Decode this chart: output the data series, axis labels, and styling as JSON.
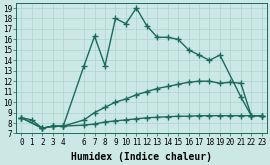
{
  "xlabel": "Humidex (Indice chaleur)",
  "background_color": "#cce8e4",
  "line_color": "#1a6b5a",
  "grid_color": "#aad4cc",
  "xlim": [
    -0.5,
    23.5
  ],
  "ylim": [
    7,
    19.5
  ],
  "xticks": [
    0,
    1,
    2,
    3,
    4,
    6,
    7,
    8,
    9,
    10,
    11,
    12,
    13,
    14,
    15,
    16,
    17,
    18,
    19,
    20,
    21,
    22,
    23
  ],
  "yticks": [
    7,
    8,
    9,
    10,
    11,
    12,
    13,
    14,
    15,
    16,
    17,
    18,
    19
  ],
  "curve1_x": [
    0,
    1,
    2,
    3,
    4,
    6,
    7,
    8,
    9,
    10,
    11,
    12,
    13,
    14,
    15,
    16,
    17,
    18,
    19,
    21,
    22,
    23
  ],
  "curve1_y": [
    8.5,
    8.3,
    7.5,
    7.7,
    7.7,
    13.5,
    16.3,
    13.5,
    18.0,
    17.5,
    19.0,
    17.3,
    16.2,
    16.2,
    16.0,
    15.0,
    14.5,
    14.0,
    14.5,
    10.5,
    8.7,
    8.7
  ],
  "curve2_x": [
    0,
    2,
    3,
    4,
    6,
    7,
    8,
    9,
    10,
    11,
    12,
    13,
    14,
    15,
    16,
    17,
    18,
    19,
    20,
    21,
    22,
    23
  ],
  "curve2_y": [
    8.5,
    7.5,
    7.7,
    7.7,
    8.3,
    9.0,
    9.5,
    10.0,
    10.3,
    10.7,
    11.0,
    11.3,
    11.5,
    11.7,
    11.9,
    12.0,
    12.0,
    11.8,
    11.9,
    11.8,
    8.7,
    8.7
  ],
  "curve3_x": [
    0,
    2,
    3,
    4,
    6,
    7,
    8,
    9,
    10,
    11,
    12,
    13,
    14,
    15,
    16,
    17,
    18,
    19,
    20,
    21,
    22,
    23
  ],
  "curve3_y": [
    8.5,
    7.5,
    7.7,
    7.7,
    7.8,
    7.9,
    8.1,
    8.2,
    8.3,
    8.4,
    8.5,
    8.55,
    8.6,
    8.65,
    8.65,
    8.7,
    8.7,
    8.7,
    8.7,
    8.7,
    8.7,
    8.7
  ],
  "marker": "+",
  "marker_size": 4,
  "line_width": 1.0,
  "xlabel_fontsize": 7,
  "tick_fontsize": 5.5
}
